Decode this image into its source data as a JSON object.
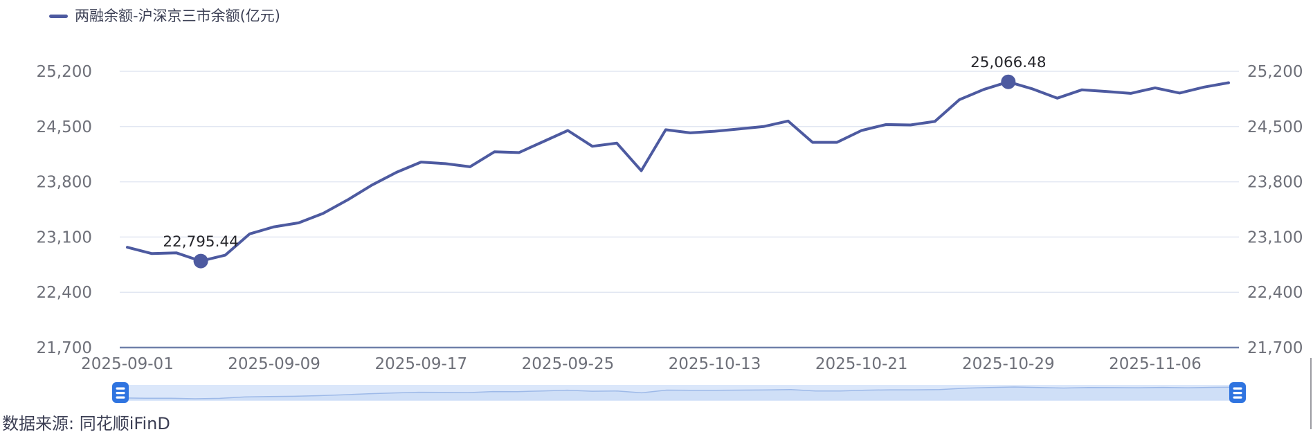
{
  "legend": {
    "label": "两融余额-沪深京三市余额(亿元)"
  },
  "footer": {
    "source": "数据来源: 同花顺iFinD"
  },
  "colors": {
    "background": "#ffffff",
    "line": "#4d5aa0",
    "marker": "#4d5aa0",
    "grid": "#e2e7f2",
    "axis_line": "#6f80a9",
    "axis_label": "#6e7079",
    "point_label": "#26262b",
    "legend_text": "#3d4156",
    "dz_track": "#dbe7fa",
    "dz_shadow_line": "#9db9e8",
    "dz_shadow_fill": "#cfdff7",
    "dz_handle": "#2f74e0",
    "edge_line": "#9b9ba1"
  },
  "chart_data": {
    "type": "line",
    "title": "",
    "legend": "两融余额-沪深京三市余额(亿元)",
    "legend_position": "top-left",
    "grid": true,
    "dual_y_axis": true,
    "ylim": [
      21700,
      25200
    ],
    "y_ticks": [
      25200,
      24500,
      23800,
      23100,
      22400,
      21700
    ],
    "y_tick_labels": [
      "25,200",
      "24,500",
      "23,800",
      "23,100",
      "22,400",
      "21,700"
    ],
    "x_tick_indices": [
      0,
      6,
      12,
      18,
      24,
      30,
      36,
      42
    ],
    "x_tick_labels": [
      "2025-09-01",
      "2025-09-09",
      "2025-09-17",
      "2025-09-25",
      "2025-10-13",
      "2025-10-21",
      "2025-10-29",
      "2025-11-06"
    ],
    "x": [
      "2025-09-01",
      "2025-09-02",
      "2025-09-03",
      "2025-09-04",
      "2025-09-05",
      "2025-09-08",
      "2025-09-09",
      "2025-09-10",
      "2025-09-11",
      "2025-09-12",
      "2025-09-15",
      "2025-09-16",
      "2025-09-17",
      "2025-09-18",
      "2025-09-19",
      "2025-09-22",
      "2025-09-23",
      "2025-09-24",
      "2025-09-25",
      "2025-09-26",
      "2025-09-29",
      "2025-09-30",
      "2025-10-09",
      "2025-10-10",
      "2025-10-13",
      "2025-10-14",
      "2025-10-15",
      "2025-10-16",
      "2025-10-17",
      "2025-10-20",
      "2025-10-21",
      "2025-10-22",
      "2025-10-23",
      "2025-10-24",
      "2025-10-27",
      "2025-10-28",
      "2025-10-29",
      "2025-10-30",
      "2025-10-31",
      "2025-11-03",
      "2025-11-04",
      "2025-11-05",
      "2025-11-06",
      "2025-11-07",
      "2025-11-10",
      "2025-11-11"
    ],
    "values": [
      22970,
      22890,
      22900,
      22795.44,
      22870,
      23140,
      23230,
      23280,
      23400,
      23570,
      23760,
      23920,
      24050,
      24030,
      23990,
      24180,
      24170,
      24310,
      24450,
      24250,
      24290,
      23940,
      24460,
      24420,
      24440,
      24470,
      24500,
      24570,
      24300,
      24300,
      24450,
      24525,
      24520,
      24565,
      24840,
      24970,
      25066.48,
      24975,
      24860,
      24965,
      24945,
      24920,
      24990,
      24925,
      25000,
      25055
    ],
    "min_point": {
      "index": 3,
      "date": "2025-09-04",
      "value": 22795.44,
      "label": "22,795.44"
    },
    "max_point": {
      "index": 36,
      "date": "2025-10-29",
      "value": 25066.48,
      "label": "25,066.48"
    },
    "datazoom": {
      "enabled": true,
      "position": "bottom"
    }
  }
}
